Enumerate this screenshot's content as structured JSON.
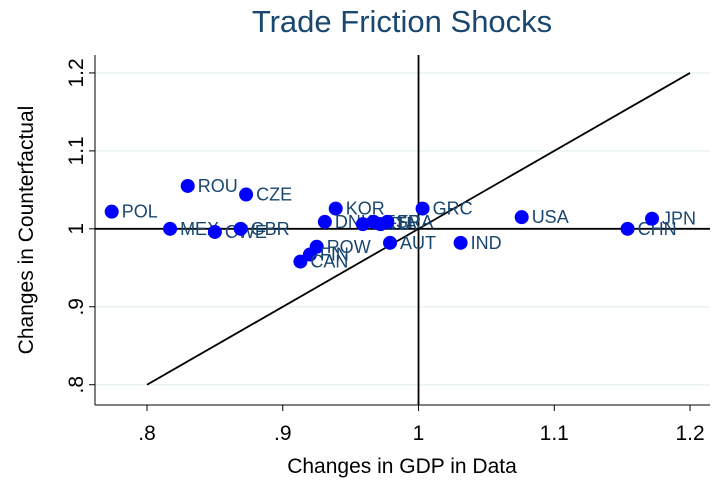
{
  "chart_data": {
    "type": "scatter",
    "title": "Trade Friction Shocks",
    "x_label": "Changes in GDP in Data",
    "y_label": "Changes in Counterfactual",
    "color": "#0000ff",
    "label_color": "#1a476f",
    "points": [
      {
        "label": "POL",
        "x": 0.774,
        "y": 1.022
      },
      {
        "label": "ROU",
        "x": 0.83,
        "y": 1.055
      },
      {
        "label": "CZE",
        "x": 0.873,
        "y": 1.044
      },
      {
        "label": "MEX",
        "x": 0.817,
        "y": 1.0
      },
      {
        "label": "CWE",
        "x": 0.85,
        "y": 0.996
      },
      {
        "label": "GBR",
        "x": 0.869,
        "y": 1.0
      },
      {
        "label": "KOR",
        "x": 0.939,
        "y": 1.026
      },
      {
        "label": "DNK",
        "x": 0.931,
        "y": 1.009
      },
      {
        "label": "ROW",
        "x": 0.925,
        "y": 0.977
      },
      {
        "label": "FIN",
        "x": 0.92,
        "y": 0.967
      },
      {
        "label": "CAN",
        "x": 0.913,
        "y": 0.958
      },
      {
        "label": "DEU",
        "x": 0.959,
        "y": 1.006
      },
      {
        "label": "ESP",
        "x": 0.967,
        "y": 1.009
      },
      {
        "label": "ITA",
        "x": 0.972,
        "y": 1.006
      },
      {
        "label": "FRA",
        "x": 0.977,
        "y": 1.009
      },
      {
        "label": "AUT",
        "x": 0.979,
        "y": 0.982
      },
      {
        "label": "GRC",
        "x": 1.003,
        "y": 1.026
      },
      {
        "label": "IND",
        "x": 1.031,
        "y": 0.982
      },
      {
        "label": "USA",
        "x": 1.076,
        "y": 1.015
      },
      {
        "label": "CHN",
        "x": 1.154,
        "y": 1.0
      },
      {
        "label": "JPN",
        "x": 1.172,
        "y": 1.013
      }
    ],
    "reference_line": {
      "x": [
        0.8,
        1.2
      ],
      "y": [
        0.8,
        1.2
      ]
    },
    "xline": 1,
    "yline": 1,
    "xlim": [
      0.7617,
      1.2147
    ],
    "ylim": [
      0.774,
      1.223
    ],
    "xticks": [
      {
        "value": 0.8,
        "label": ".8"
      },
      {
        "value": 0.9,
        "label": ".9"
      },
      1,
      1.1,
      1.2
    ],
    "yticks": [
      {
        "value": 0.8,
        "label": ".8"
      },
      {
        "value": 0.9,
        "label": ".9"
      },
      1,
      1.1,
      1.2
    ],
    "grid": true
  }
}
